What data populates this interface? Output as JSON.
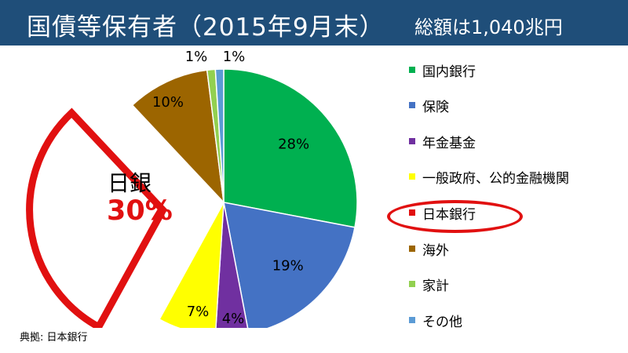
{
  "header": {
    "title": "国債等保有者（2015年9月末）",
    "subtitle": "総額は1,040兆円"
  },
  "source": "典拠: 日本銀行",
  "callout": {
    "name": "日銀",
    "percent": "30%"
  },
  "colors": {
    "title_bg": "#1f4e79",
    "highlight": "#e11010"
  },
  "chart_data": {
    "type": "pie",
    "title": "",
    "start_angle_deg": 0,
    "direction": "clockwise",
    "slices": [
      {
        "label": "国内銀行",
        "value": 28,
        "display": "28%",
        "color": "#00b050"
      },
      {
        "label": "保険",
        "value": 19,
        "display": "19%",
        "color": "#4472c4"
      },
      {
        "label": "年金基金",
        "value": 4,
        "display": "4%",
        "color": "#7030a0"
      },
      {
        "label": "一般政府、公的金融機関",
        "value": 7,
        "display": "7%",
        "color": "#ffff00"
      },
      {
        "label": "日本銀行",
        "value": 30,
        "display": "",
        "color": "#ffffff",
        "exploded": true,
        "highlighted": true
      },
      {
        "label": "海外",
        "value": 10,
        "display": "10%",
        "color": "#9c6500"
      },
      {
        "label": "家計",
        "value": 1,
        "display": "1%",
        "color": "#92d050"
      },
      {
        "label": "その他",
        "value": 1,
        "display": "1%",
        "color": "#5b9bd5"
      }
    ],
    "legend_position": "right"
  }
}
